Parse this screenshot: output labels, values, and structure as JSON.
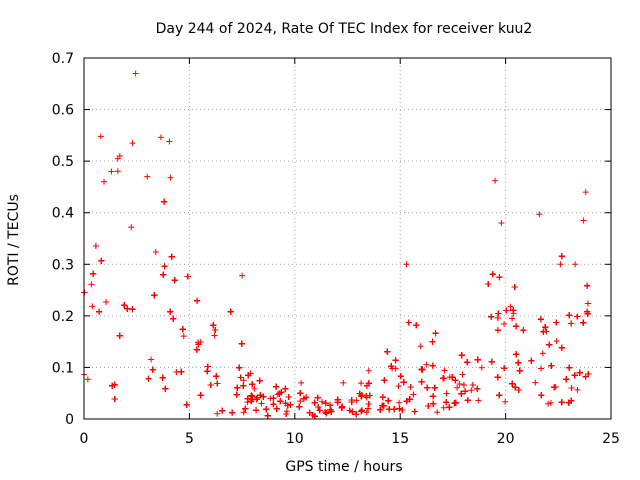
{
  "chart_data": {
    "type": "scatter",
    "title": "Day 244 of 2024, Rate Of TEC Index for receiver kuu2",
    "xlabel": "GPS time / hours",
    "ylabel": "ROTI / TECUs",
    "xlim": [
      0,
      25
    ],
    "ylim": [
      0,
      0.7
    ],
    "x_ticks": [
      "0",
      "5",
      "10",
      "15",
      "20",
      "25"
    ],
    "y_ticks": [
      "0",
      "0.1",
      "0.2",
      "0.3",
      "0.4",
      "0.5",
      "0.6",
      "0.7"
    ],
    "x_tick_values": [
      0,
      5,
      10,
      15,
      20,
      25
    ],
    "y_tick_values": [
      0,
      0.1,
      0.2,
      0.3,
      0.4,
      0.5,
      0.6,
      0.7
    ],
    "grid": true,
    "marker": "+",
    "series": [
      {
        "name": "ROTI",
        "color": "#ff0000",
        "envelope": {
          "x": [
            0,
            0.5,
            1,
            1.5,
            2,
            2.5,
            3,
            3.5,
            4,
            4.5,
            5,
            6,
            7,
            8,
            9,
            10,
            11,
            12,
            13,
            14,
            15,
            16,
            17,
            18,
            19,
            19.5,
            20,
            21,
            22,
            23,
            24
          ],
          "typical_low": [
            0.06,
            0.04,
            0.05,
            0.03,
            0.05,
            0.06,
            0.05,
            0.03,
            0.04,
            0.04,
            0.02,
            0.01,
            0.01,
            0.01,
            0.005,
            0.005,
            0.005,
            0.005,
            0.005,
            0.01,
            0.01,
            0.01,
            0.01,
            0.01,
            0.02,
            0.03,
            0.03,
            0.03,
            0.02,
            0.03,
            0.03
          ],
          "typical_high": [
            0.3,
            0.28,
            0.32,
            0.3,
            0.35,
            0.2,
            0.25,
            0.3,
            0.32,
            0.28,
            0.2,
            0.17,
            0.15,
            0.08,
            0.05,
            0.04,
            0.035,
            0.03,
            0.04,
            0.08,
            0.12,
            0.1,
            0.1,
            0.1,
            0.12,
            0.2,
            0.22,
            0.2,
            0.18,
            0.2,
            0.22
          ],
          "max": [
            0.43,
            0.46,
            0.55,
            0.5,
            0.47,
            0.67,
            0.42,
            0.55,
            0.47,
            0.32,
            0.28,
            0.24,
            0.22,
            0.13,
            0.07,
            0.06,
            0.05,
            0.05,
            0.07,
            0.18,
            0.3,
            0.17,
            0.17,
            0.16,
            0.26,
            0.46,
            0.31,
            0.4,
            0.3,
            0.44,
            0.32
          ]
        },
        "outliers": [
          [
            2.45,
            0.67
          ],
          [
            0.8,
            0.548
          ],
          [
            3.65,
            0.546
          ],
          [
            4.05,
            0.538
          ],
          [
            1.6,
            0.505
          ],
          [
            2.3,
            0.535
          ],
          [
            1.7,
            0.51
          ],
          [
            1.3,
            0.48
          ],
          [
            0.95,
            0.46
          ],
          [
            3.0,
            0.47
          ],
          [
            4.1,
            0.468
          ],
          [
            19.5,
            0.462
          ],
          [
            23.8,
            0.44
          ],
          [
            21.6,
            0.397
          ],
          [
            23.7,
            0.385
          ],
          [
            19.8,
            0.38
          ],
          [
            15.3,
            0.3
          ],
          [
            22.6,
            0.3
          ],
          [
            23.3,
            0.3
          ],
          [
            7.5,
            0.278
          ],
          [
            12.3,
            0.07
          ],
          [
            10.3,
            0.07
          ]
        ]
      }
    ]
  }
}
